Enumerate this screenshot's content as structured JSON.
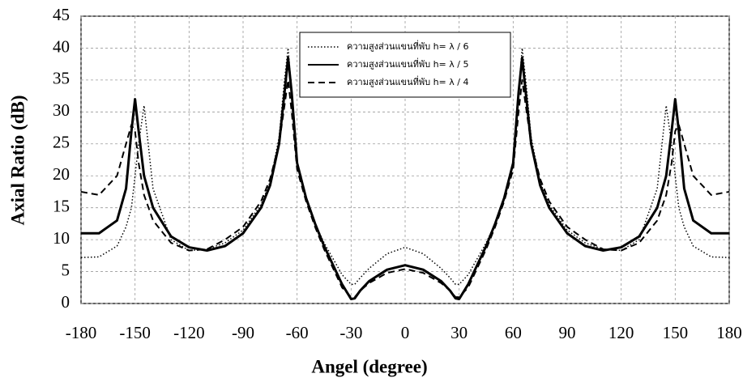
{
  "chart_data": {
    "type": "line",
    "xlabel": "Angel (degree)",
    "ylabel": "Axial Ratio (dB)",
    "x": [
      -180,
      -170,
      -160,
      -155,
      -152,
      -150,
      -148,
      -145,
      -140,
      -130,
      -120,
      -110,
      -100,
      -90,
      -80,
      -75,
      -70,
      -67,
      -65,
      -63,
      -60,
      -55,
      -50,
      -45,
      -40,
      -35,
      -30,
      -28,
      -25,
      -20,
      -10,
      0,
      10,
      20,
      25,
      28,
      30,
      35,
      40,
      45,
      50,
      55,
      60,
      63,
      65,
      67,
      70,
      75,
      80,
      90,
      100,
      110,
      120,
      130,
      140,
      145,
      148,
      150,
      152,
      155,
      160,
      170,
      180
    ],
    "series": [
      {
        "name": "ความสูงส่วนแขนที่พับ h= λ / 6",
        "color": "#000000",
        "style": "dotted",
        "values": [
          7.2,
          7.3,
          9,
          12,
          15,
          20,
          25,
          31,
          18,
          10,
          8.3,
          8.5,
          9.5,
          11.5,
          15.5,
          19,
          26,
          35,
          40,
          33,
          22,
          16.5,
          12.5,
          9.5,
          7,
          4.5,
          3,
          3,
          4,
          5.5,
          7.8,
          8.8,
          7.8,
          5.5,
          4,
          3,
          3,
          4.5,
          7,
          9.5,
          12.5,
          16.5,
          22,
          33,
          40,
          35,
          26,
          19,
          15.5,
          11.5,
          9.5,
          8.5,
          8.3,
          10,
          18,
          31,
          25,
          20,
          15,
          12,
          9,
          7.3,
          7.2
        ]
      },
      {
        "name": "ความสูงส่วนแขนที่พับ h= λ / 5",
        "color": "#000000",
        "style": "solid",
        "values": [
          11,
          11,
          13,
          18,
          27,
          32,
          27,
          20,
          15,
          10.5,
          8.8,
          8.3,
          9,
          11,
          15,
          18.5,
          25,
          33,
          38.5,
          33,
          22,
          16.5,
          12.5,
          9,
          6,
          3,
          0.7,
          0.8,
          2,
          3.5,
          5.3,
          6,
          5.3,
          3.5,
          2,
          0.8,
          0.7,
          3,
          6,
          9,
          12.5,
          16.5,
          22,
          33,
          38.5,
          33,
          25,
          18.5,
          15,
          11,
          9,
          8.3,
          8.8,
          10.5,
          15,
          20,
          27,
          32,
          27,
          18,
          13,
          11,
          11
        ]
      },
      {
        "name": "ความสูงส่วนแขนที่พับ h= λ / 4",
        "color": "#000000",
        "style": "dashed",
        "values": [
          17.5,
          17,
          20,
          25,
          28,
          27,
          22,
          17,
          13,
          9.5,
          8.3,
          8.5,
          10,
          12,
          16,
          19.5,
          25,
          31,
          35,
          30,
          21,
          16,
          12,
          8.5,
          5.5,
          2.5,
          1,
          1,
          2,
          3.2,
          4.8,
          5.4,
          4.8,
          3.2,
          2,
          1,
          1,
          2.5,
          5.5,
          8.5,
          12,
          16,
          21,
          30,
          35,
          31,
          25,
          19.5,
          16,
          12,
          10,
          8.5,
          8.3,
          9.5,
          13,
          17,
          22,
          27,
          28,
          25,
          20,
          17,
          17.5
        ]
      }
    ],
    "xlim": [
      -180,
      180
    ],
    "ylim": [
      0,
      45
    ],
    "xticks": [
      -180,
      -150,
      -120,
      -90,
      -60,
      -30,
      0,
      30,
      60,
      90,
      120,
      150,
      180
    ],
    "yticks": [
      0,
      5,
      10,
      15,
      20,
      25,
      30,
      35,
      40,
      45
    ],
    "grid": true,
    "legend": "top"
  }
}
